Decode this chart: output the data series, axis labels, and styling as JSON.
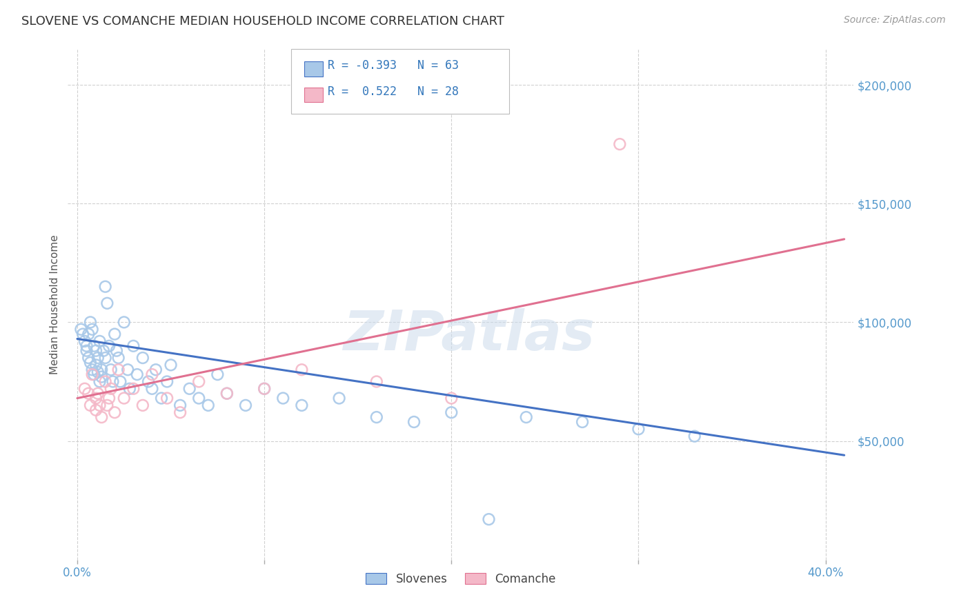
{
  "title": "SLOVENE VS COMANCHE MEDIAN HOUSEHOLD INCOME CORRELATION CHART",
  "source": "Source: ZipAtlas.com",
  "ylabel": "Median Household Income",
  "background_color": "#ffffff",
  "plot_bg_color": "#ffffff",
  "grid_color": "#d0d0d0",
  "watermark": "ZIPatlas",
  "watermark_color": "#ccdcec",
  "slovenes_scatter_color": "#a8c8e8",
  "slovenes_line_color": "#4472c4",
  "comanche_scatter_color": "#f4b8c8",
  "comanche_line_color": "#e07090",
  "ytick_labels": [
    "$50,000",
    "$100,000",
    "$150,000",
    "$200,000"
  ],
  "ytick_values": [
    50000,
    100000,
    150000,
    200000
  ],
  "ylim": [
    0,
    215000
  ],
  "xlim_left": -0.005,
  "xlim_right": 0.415,
  "sl_line_x0": 0.0,
  "sl_line_x1": 0.41,
  "sl_line_y0": 93000,
  "sl_line_y1": 44000,
  "co_line_x0": 0.0,
  "co_line_x1": 0.41,
  "co_line_y0": 68000,
  "co_line_y1": 135000,
  "sl_x": [
    0.002,
    0.003,
    0.004,
    0.005,
    0.005,
    0.006,
    0.006,
    0.007,
    0.007,
    0.008,
    0.008,
    0.009,
    0.009,
    0.01,
    0.01,
    0.011,
    0.011,
    0.012,
    0.012,
    0.013,
    0.013,
    0.014,
    0.015,
    0.015,
    0.016,
    0.017,
    0.018,
    0.019,
    0.02,
    0.021,
    0.022,
    0.023,
    0.025,
    0.027,
    0.028,
    0.03,
    0.032,
    0.035,
    0.038,
    0.04,
    0.042,
    0.045,
    0.048,
    0.05,
    0.055,
    0.06,
    0.065,
    0.07,
    0.075,
    0.08,
    0.09,
    0.1,
    0.11,
    0.12,
    0.14,
    0.16,
    0.18,
    0.2,
    0.22,
    0.24,
    0.27,
    0.3,
    0.33
  ],
  "sl_y": [
    97000,
    95000,
    92000,
    90000,
    88000,
    95000,
    85000,
    100000,
    83000,
    97000,
    80000,
    90000,
    78000,
    88000,
    82000,
    85000,
    79000,
    92000,
    75000,
    80000,
    77000,
    88000,
    115000,
    85000,
    108000,
    90000,
    80000,
    75000,
    95000,
    88000,
    85000,
    75000,
    100000,
    80000,
    72000,
    90000,
    78000,
    85000,
    75000,
    72000,
    80000,
    68000,
    75000,
    82000,
    65000,
    72000,
    68000,
    65000,
    78000,
    70000,
    65000,
    72000,
    68000,
    65000,
    68000,
    60000,
    58000,
    62000,
    17000,
    60000,
    58000,
    55000,
    52000
  ],
  "co_x": [
    0.004,
    0.006,
    0.007,
    0.008,
    0.01,
    0.01,
    0.011,
    0.012,
    0.013,
    0.015,
    0.016,
    0.017,
    0.018,
    0.02,
    0.022,
    0.025,
    0.03,
    0.035,
    0.04,
    0.048,
    0.055,
    0.065,
    0.08,
    0.1,
    0.12,
    0.16,
    0.2,
    0.29
  ],
  "co_y": [
    72000,
    70000,
    65000,
    78000,
    68000,
    63000,
    70000,
    65000,
    60000,
    75000,
    65000,
    68000,
    72000,
    62000,
    80000,
    68000,
    72000,
    65000,
    78000,
    68000,
    62000,
    75000,
    70000,
    72000,
    80000,
    75000,
    68000,
    175000
  ]
}
